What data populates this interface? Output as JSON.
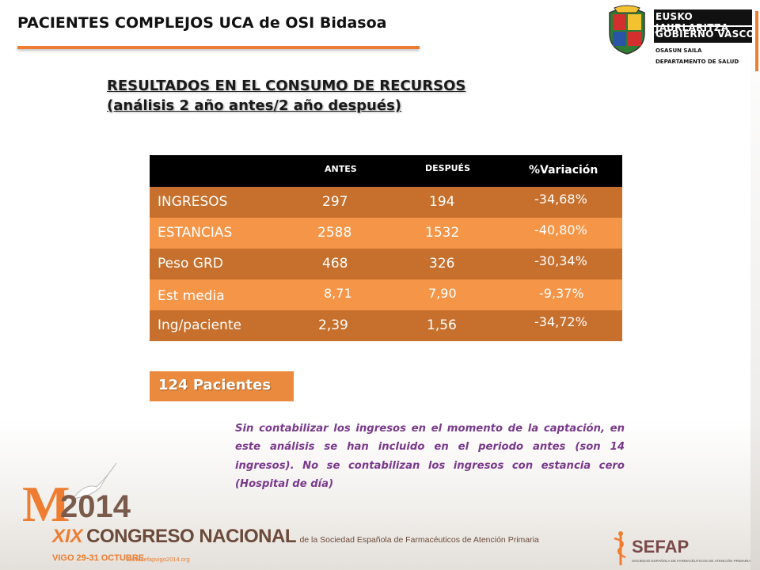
{
  "header": {
    "title": "PACIENTES COMPLEJOS UCA de OSI Bidasoa"
  },
  "gov_logo": {
    "line1": "EUSKO JAURLARITZA",
    "line2": "GOBIERNO VASCO",
    "sub1": "OSASUN SAILA",
    "sub2": "DEPARTAMENTO DE SALUD"
  },
  "section": {
    "line1": "RESULTADOS EN EL CONSUMO DE RECURSOS",
    "line2": "(análisis 2 año antes/2 año después)"
  },
  "table": {
    "headers": [
      "ANTES",
      "DESPUÉS",
      "%Variación"
    ],
    "rows": [
      {
        "label": "INGRESOS",
        "antes": "297",
        "despues": "194",
        "variacion": "-34,68%"
      },
      {
        "label": "ESTANCIAS",
        "antes": "2588",
        "despues": "1532",
        "variacion": "-40,80%"
      },
      {
        "label": "Peso GRD",
        "antes": "468",
        "despues": "326",
        "variacion": "-30,34%"
      },
      {
        "label": "Est media",
        "antes": "8,71",
        "despues": "7,90",
        "variacion": "-9,37%"
      },
      {
        "label": "Ing/paciente",
        "antes": "2,39",
        "despues": "1,56",
        "variacion": "-34,72%"
      }
    ]
  },
  "patients_badge": "124 Pacientes",
  "note": "Sin contabilizar los ingresos en el momento de la captación, en este análisis se han incluido en el periodo antes (son 14 ingresos). No se contabilizan los ingresos con estancia cero (Hospital de día)",
  "footer": {
    "m_letter": "M",
    "year": "2014",
    "roman": "XIX",
    "congreso": "CONGRESO NACIONAL",
    "congreso_sub": "de la Sociedad Española de Farmacéuticos de Atención Primaria",
    "date": "VIGO 29-31 OCTUBRE",
    "url": "www.sefapvigo2014.org",
    "sefap": "SEFAP",
    "sefap_sub": "SOCIEDAD ESPAÑOLA DE FARMACÉUTICOS DE ATENCIÓN PRIMARIA"
  },
  "colors": {
    "accent_orange": "#ee7d31",
    "row_dark": "#c7702d",
    "row_light": "#f59547",
    "note_purple": "#7a3a8c"
  }
}
